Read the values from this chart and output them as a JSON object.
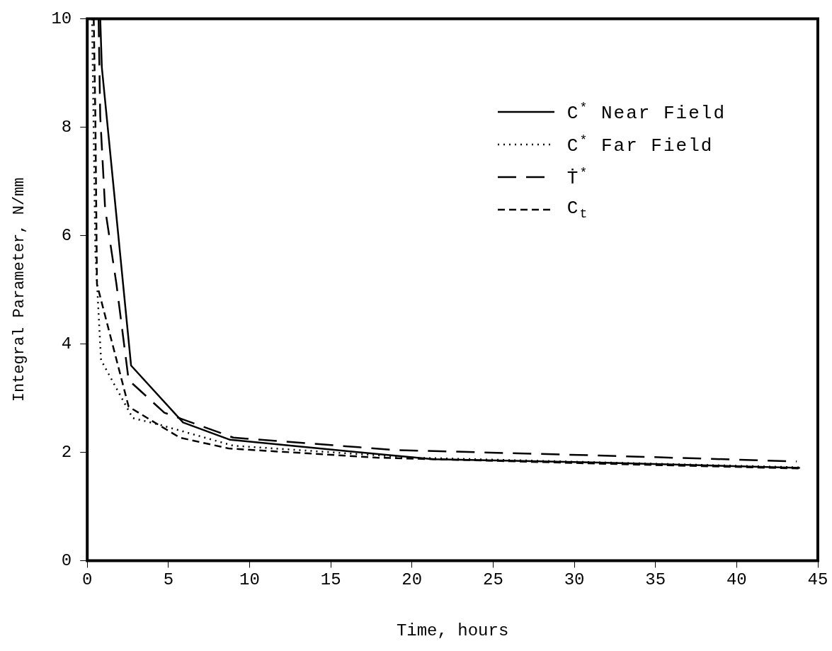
{
  "chart_data": {
    "type": "line",
    "xlabel": "Time, hours",
    "ylabel": "Integral Parameter, N/mm",
    "xlim": [
      0,
      45
    ],
    "xticks": [
      0,
      5,
      10,
      15,
      20,
      25,
      30,
      35,
      40,
      45
    ],
    "ylim": [
      0,
      10
    ],
    "yticks": [
      0,
      2,
      4,
      6,
      8,
      10
    ],
    "grid": false,
    "legend": "top right",
    "marker": "none",
    "series": [
      {
        "name": "C$^{*}$ Near Field",
        "color": "#000000",
        "line_style": "solid",
        "x": [
          0.8,
          0.9,
          2.7,
          5.9,
          8.8,
          17.8,
          21.3,
          31.5,
          43.9
        ],
        "values": [
          10,
          9.1,
          3.6,
          2.55,
          2.23,
          1.97,
          1.87,
          1.81,
          1.71
        ]
      },
      {
        "name": "C$^{*}$ Far Field",
        "color": "#000000",
        "line_style": "dotted",
        "x": [
          0.3,
          0.5,
          0.85,
          2.8,
          4.3,
          9,
          20,
          44
        ],
        "values": [
          10,
          5.7,
          3.7,
          2.63,
          2.52,
          2.12,
          1.9,
          1.72
        ]
      },
      {
        "name": "Ṫ$^{*}$",
        "color": "#000000",
        "line_style": "long-dashed",
        "x": [
          0.7,
          0.8,
          1.1,
          1.8,
          2.55,
          4.75,
          9,
          19,
          31.5,
          43.7
        ],
        "values": [
          10,
          8.2,
          6.5,
          5.1,
          3.33,
          2.73,
          2.27,
          2.04,
          1.94,
          1.83
        ]
      },
      {
        "name": "C$_{t}$",
        "color": "#000000",
        "line_style": "dashed",
        "x": [
          0.4,
          0.5,
          0.6,
          2.55,
          5.7,
          8.7,
          17.8,
          31.5,
          43.9
        ],
        "values": [
          10,
          8.2,
          5.1,
          2.84,
          2.27,
          2.07,
          1.9,
          1.79,
          1.7
        ]
      }
    ]
  }
}
